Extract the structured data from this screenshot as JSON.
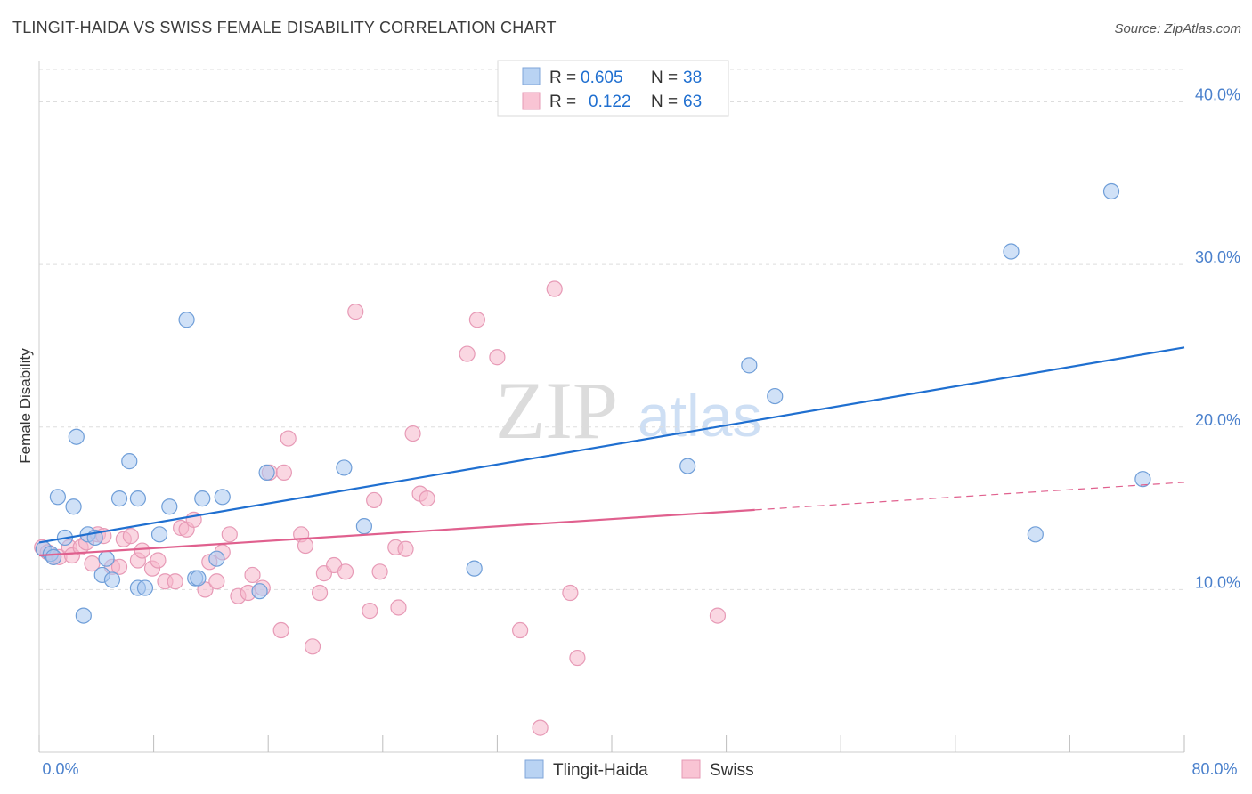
{
  "header": {
    "title": "TLINGIT-HAIDA VS SWISS FEMALE DISABILITY CORRELATION CHART",
    "source": "Source: ZipAtlas.com"
  },
  "watermark": {
    "zip": "ZIP",
    "atlas": "atlas"
  },
  "colors": {
    "blue": "#1f6fd0",
    "blue_fill": "#a9c8f0",
    "pink": "#e0608e",
    "pink_fill": "#f5b7cb",
    "tick_text": "#4a80cc",
    "grid": "#dddddd"
  },
  "legend_top": {
    "rows": [
      {
        "r_label": "R = ",
        "r_value": "0.605",
        "n_label": "N = ",
        "n_value": "38"
      },
      {
        "r_label": "R = ",
        "r_value": "0.122",
        "n_label": "N = ",
        "n_value": "63"
      }
    ]
  },
  "chart_data": {
    "type": "scatter",
    "title": "TLINGIT-HAIDA VS SWISS FEMALE DISABILITY CORRELATION CHART",
    "xlabel": "",
    "ylabel": "Female Disability",
    "xlim": [
      0,
      80
    ],
    "ylim": [
      0,
      42
    ],
    "x_tick_labels": [
      "0.0%",
      "80.0%"
    ],
    "y_ticks": [
      10,
      20,
      30,
      40
    ],
    "y_tick_labels": [
      "10.0%",
      "20.0%",
      "30.0%",
      "40.0%"
    ],
    "grid": true,
    "legend": "bottom-center",
    "series": [
      {
        "name": "Tlingit-Haida",
        "color": "#1f6fd0",
        "R": 0.605,
        "N": 38,
        "trend": {
          "x": [
            0,
            80
          ],
          "y": [
            12.9,
            24.9
          ]
        },
        "points": [
          [
            0.3,
            12.5
          ],
          [
            0.8,
            12.2
          ],
          [
            1.0,
            12.0
          ],
          [
            1.3,
            15.7
          ],
          [
            1.8,
            13.2
          ],
          [
            2.4,
            15.1
          ],
          [
            2.6,
            19.4
          ],
          [
            3.1,
            8.4
          ],
          [
            3.4,
            13.4
          ],
          [
            3.9,
            13.2
          ],
          [
            4.4,
            10.9
          ],
          [
            4.7,
            11.9
          ],
          [
            5.1,
            10.6
          ],
          [
            5.6,
            15.6
          ],
          [
            6.3,
            17.9
          ],
          [
            6.9,
            15.6
          ],
          [
            6.9,
            10.1
          ],
          [
            7.4,
            10.1
          ],
          [
            8.4,
            13.4
          ],
          [
            9.1,
            15.1
          ],
          [
            10.3,
            26.6
          ],
          [
            10.9,
            10.7
          ],
          [
            11.1,
            10.7
          ],
          [
            11.4,
            15.6
          ],
          [
            12.4,
            11.9
          ],
          [
            12.8,
            15.7
          ],
          [
            15.4,
            9.9
          ],
          [
            15.9,
            17.2
          ],
          [
            21.3,
            17.5
          ],
          [
            22.7,
            13.9
          ],
          [
            30.4,
            11.3
          ],
          [
            45.3,
            17.6
          ],
          [
            49.6,
            23.8
          ],
          [
            51.4,
            21.9
          ],
          [
            67.9,
            30.8
          ],
          [
            69.6,
            13.4
          ],
          [
            74.9,
            34.5
          ],
          [
            77.1,
            16.8
          ]
        ]
      },
      {
        "name": "Swiss",
        "color": "#e0608e",
        "R": 0.122,
        "N": 63,
        "trend": {
          "x": [
            0,
            50
          ],
          "y": [
            12.1,
            14.9
          ]
        },
        "trend_dashed": {
          "x": [
            50,
            80
          ],
          "y": [
            14.9,
            16.6
          ]
        },
        "points": [
          [
            0.2,
            12.6
          ],
          [
            0.6,
            12.3
          ],
          [
            1.0,
            12.0
          ],
          [
            1.4,
            12.0
          ],
          [
            2.1,
            12.6
          ],
          [
            2.3,
            12.1
          ],
          [
            2.9,
            12.6
          ],
          [
            3.3,
            12.9
          ],
          [
            3.7,
            11.6
          ],
          [
            4.1,
            13.4
          ],
          [
            4.5,
            13.3
          ],
          [
            5.1,
            11.4
          ],
          [
            5.6,
            11.4
          ],
          [
            5.9,
            13.1
          ],
          [
            6.4,
            13.3
          ],
          [
            6.9,
            11.8
          ],
          [
            7.2,
            12.4
          ],
          [
            7.9,
            11.3
          ],
          [
            8.3,
            11.8
          ],
          [
            8.8,
            10.5
          ],
          [
            9.5,
            10.5
          ],
          [
            9.9,
            13.8
          ],
          [
            10.3,
            13.7
          ],
          [
            10.8,
            14.3
          ],
          [
            11.6,
            10.0
          ],
          [
            11.9,
            11.7
          ],
          [
            12.4,
            10.5
          ],
          [
            12.8,
            12.3
          ],
          [
            13.3,
            13.4
          ],
          [
            13.9,
            9.6
          ],
          [
            14.6,
            9.8
          ],
          [
            14.9,
            10.9
          ],
          [
            15.6,
            10.1
          ],
          [
            16.1,
            17.2
          ],
          [
            16.9,
            7.5
          ],
          [
            17.1,
            17.2
          ],
          [
            17.4,
            19.3
          ],
          [
            18.3,
            13.4
          ],
          [
            18.6,
            12.7
          ],
          [
            19.1,
            6.5
          ],
          [
            19.6,
            9.8
          ],
          [
            19.9,
            11.0
          ],
          [
            20.6,
            11.5
          ],
          [
            21.4,
            11.1
          ],
          [
            22.1,
            27.1
          ],
          [
            23.1,
            8.7
          ],
          [
            23.4,
            15.5
          ],
          [
            23.8,
            11.1
          ],
          [
            24.9,
            12.6
          ],
          [
            25.1,
            8.9
          ],
          [
            25.6,
            12.5
          ],
          [
            26.1,
            19.6
          ],
          [
            26.6,
            15.9
          ],
          [
            27.1,
            15.6
          ],
          [
            29.9,
            24.5
          ],
          [
            30.6,
            26.6
          ],
          [
            32.0,
            24.3
          ],
          [
            33.6,
            7.5
          ],
          [
            35.0,
            1.5
          ],
          [
            36.0,
            28.5
          ],
          [
            37.1,
            9.8
          ],
          [
            37.6,
            5.8
          ],
          [
            47.4,
            8.4
          ]
        ]
      }
    ]
  }
}
